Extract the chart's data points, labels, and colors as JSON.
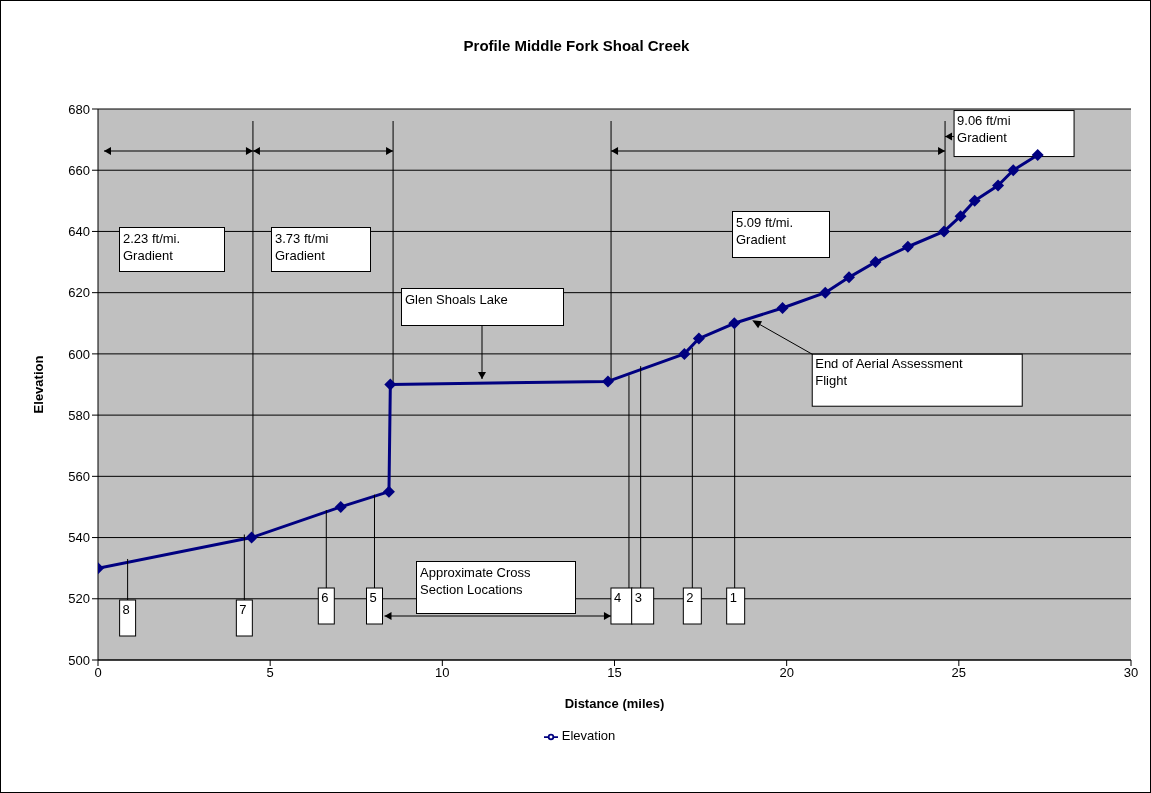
{
  "chart_data": {
    "type": "line",
    "title": "Profile Middle Fork Shoal Creek",
    "xlabel": "Distance (miles)",
    "ylabel": "Elevation",
    "x": [
      0,
      4.46,
      7.05,
      8.45,
      8.49,
      14.81,
      17.03,
      17.45,
      18.48,
      19.88,
      21.12,
      21.81,
      22.58,
      23.52,
      24.57,
      25.05,
      25.46,
      26.14,
      26.58,
      27.29
    ],
    "series": [
      {
        "name": "Elevation",
        "color": "#000080",
        "values": [
          530,
          540,
          550,
          555,
          590,
          591,
          600,
          605,
          610,
          615,
          620,
          625,
          630,
          635,
          640,
          645,
          650,
          655,
          660,
          665
        ]
      }
    ],
    "xlim": [
      0,
      30
    ],
    "xticks": [
      0,
      5,
      10,
      15,
      20,
      25,
      30
    ],
    "ylim": [
      500,
      680
    ],
    "yticks": [
      500,
      520,
      540,
      560,
      580,
      600,
      620,
      640,
      660,
      680
    ],
    "grid": "y",
    "legend": "bottom",
    "marker": "diamond",
    "line_style": "solid",
    "ref_lines": [
      {
        "axis": "x",
        "value": 4.5
      },
      {
        "axis": "x",
        "value": 8.57
      },
      {
        "axis": "x",
        "value": 14.9
      },
      {
        "axis": "x",
        "value": 24.6
      }
    ],
    "annotations": [
      "2.23 ft/mi.\nGradient",
      "3.73 ft/mi\nGradient",
      "Glen Shoals Lake",
      "5.09 ft/mi.\nGradient",
      {
        "text": "9.06 ft/mi\nGradient",
        "x": 24.6,
        "y": 671
      },
      {
        "text": "End of Aerial Assessment\nFlight",
        "x": 19.0,
        "y": 611
      },
      "Approximate Cross\nSection Locations",
      {
        "text": "8",
        "x": 0.86,
        "y": 533
      },
      {
        "text": "7",
        "x": 4.25,
        "y": 541
      },
      {
        "text": "6",
        "x": 6.63,
        "y": 549
      },
      {
        "text": "5",
        "x": 8.03,
        "y": 554
      },
      {
        "text": "4",
        "x": 15.42,
        "y": 593
      },
      {
        "text": "3",
        "x": 15.76,
        "y": 596
      },
      {
        "text": "2",
        "x": 17.26,
        "y": 602
      },
      {
        "text": "1",
        "x": 18.49,
        "y": 611
      }
    ]
  }
}
